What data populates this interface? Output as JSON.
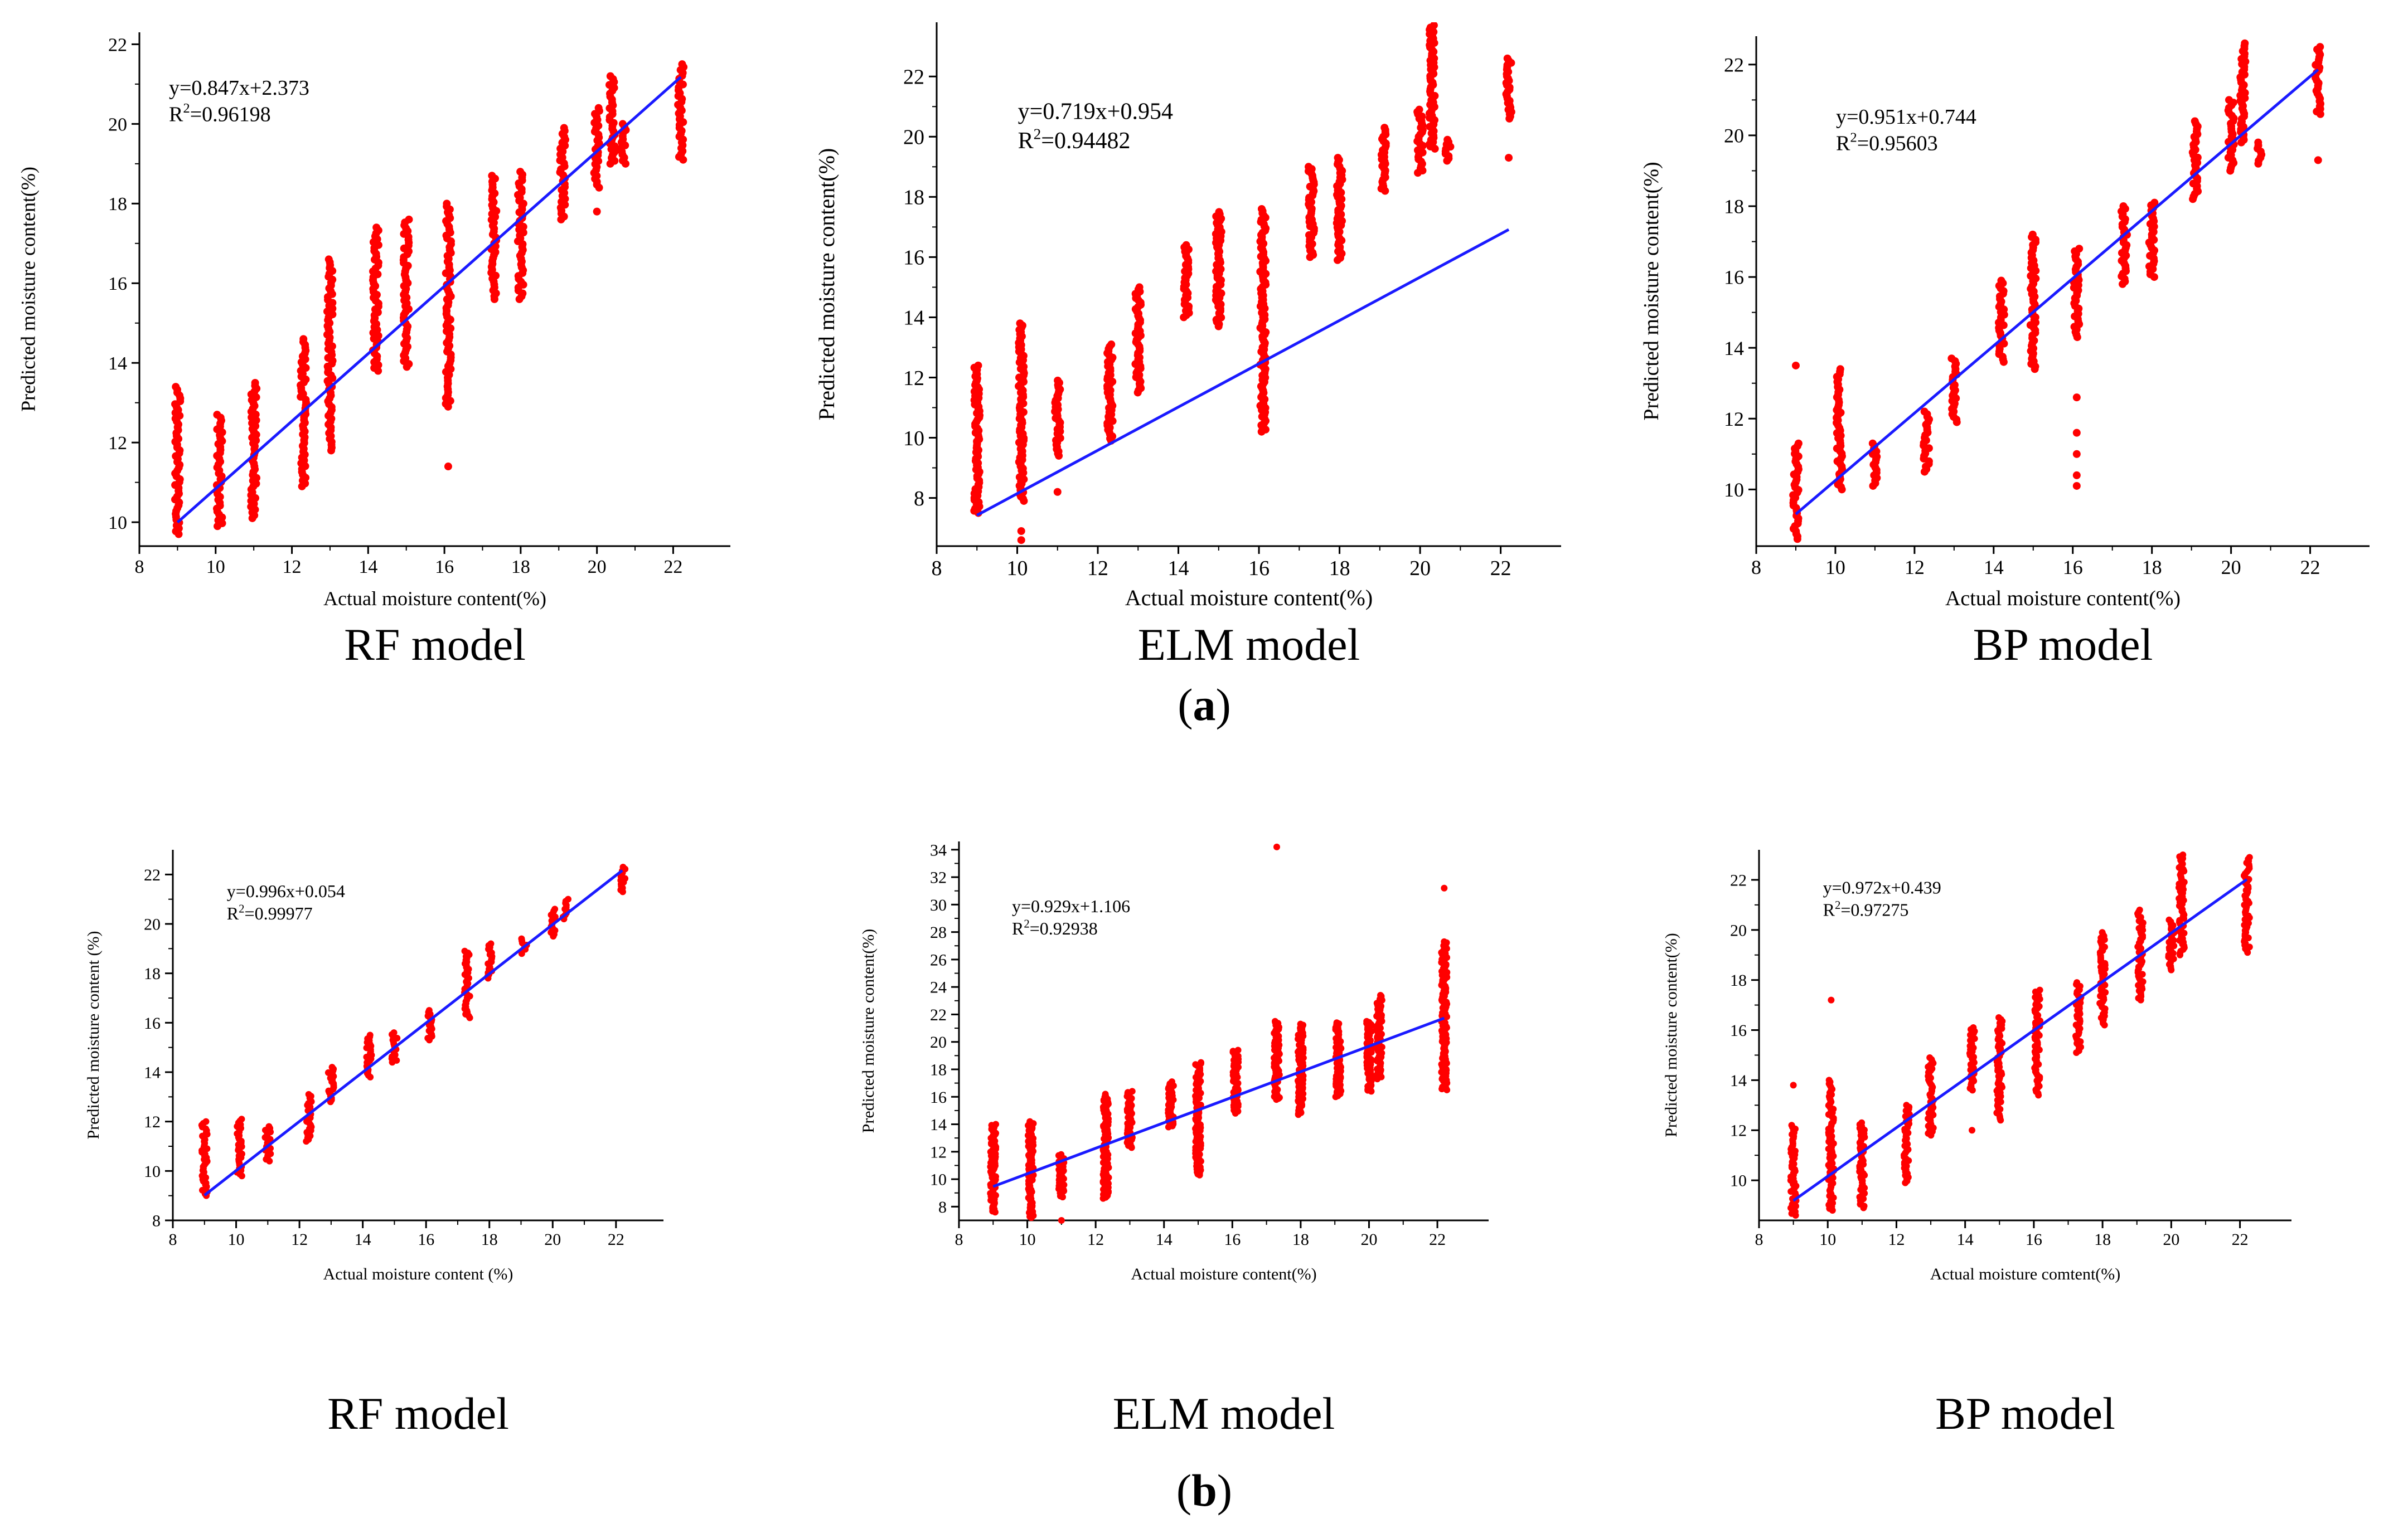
{
  "figure": {
    "row_a_label": {
      "open": "(",
      "letter": "a",
      "close": ")"
    },
    "row_b_label": {
      "open": "(",
      "letter": "b",
      "close": ")"
    }
  },
  "colors": {
    "points": "#ff0000",
    "fit_line": "#1a1aff",
    "axis": "#000000"
  },
  "chart_data": [
    {
      "type": "scatter",
      "row": "a",
      "model_label": "RF model",
      "xlabel": "Actual moisture content(%)",
      "ylabel": "Predicted moisture content(%)",
      "xlim": [
        8,
        23.5
      ],
      "ylim": [
        9.4,
        22.3
      ],
      "xticks": [
        "8",
        "10",
        "12",
        "14",
        "16",
        "18",
        "20",
        "22"
      ],
      "yticks": [
        "10",
        "12",
        "14",
        "16",
        "18",
        "20",
        "22"
      ],
      "equation": "y=0.847x+2.373",
      "r2_label": "R",
      "r2_sup": "2",
      "r2_value": "=0.96198",
      "fit": {
        "slope": 0.847,
        "intercept": 2.373,
        "x_range": [
          9.0,
          22.2
        ]
      },
      "columns": [
        {
          "x": 9.0,
          "y_min": 9.7,
          "y_max": 13.4
        },
        {
          "x": 10.1,
          "y_min": 9.9,
          "y_max": 12.7
        },
        {
          "x": 11.0,
          "y_min": 10.1,
          "y_max": 13.5
        },
        {
          "x": 12.3,
          "y_min": 10.9,
          "y_max": 14.6
        },
        {
          "x": 13.0,
          "y_min": 11.8,
          "y_max": 16.6
        },
        {
          "x": 14.2,
          "y_min": 13.8,
          "y_max": 17.4
        },
        {
          "x": 15.0,
          "y_min": 13.9,
          "y_max": 17.6
        },
        {
          "x": 16.1,
          "y_min": 12.9,
          "y_max": 18.0
        },
        {
          "x": 17.3,
          "y_min": 15.6,
          "y_max": 18.7
        },
        {
          "x": 18.0,
          "y_min": 15.6,
          "y_max": 18.8
        },
        {
          "x": 19.1,
          "y_min": 17.6,
          "y_max": 19.9
        },
        {
          "x": 20.0,
          "y_min": 18.4,
          "y_max": 20.4
        },
        {
          "x": 20.4,
          "y_min": 19.0,
          "y_max": 21.2
        },
        {
          "x": 20.7,
          "y_min": 19.0,
          "y_max": 20.0
        },
        {
          "x": 22.2,
          "y_min": 19.1,
          "y_max": 21.5
        }
      ],
      "outliers": [
        {
          "x": 16.1,
          "y": 11.4
        },
        {
          "x": 20.0,
          "y": 17.8
        }
      ]
    },
    {
      "type": "scatter",
      "row": "a",
      "model_label": "ELM model",
      "xlabel": "Actual moisture content(%)",
      "ylabel": "Predicted moisture content(%)",
      "xlim": [
        8,
        23.5
      ],
      "ylim": [
        6.4,
        23.8
      ],
      "xticks": [
        "8",
        "10",
        "12",
        "14",
        "16",
        "18",
        "20",
        "22"
      ],
      "yticks": [
        "8",
        "10",
        "12",
        "14",
        "16",
        "18",
        "20",
        "22"
      ],
      "equation": "y=0.719x+0.954",
      "r2_label": "R",
      "r2_sup": "2",
      "r2_value": "=0.94482",
      "fit": {
        "slope": 0.719,
        "intercept": 0.954,
        "x_range": [
          9.0,
          22.2
        ]
      },
      "columns": [
        {
          "x": 9.0,
          "y_min": 7.5,
          "y_max": 12.4
        },
        {
          "x": 10.1,
          "y_min": 7.9,
          "y_max": 13.8
        },
        {
          "x": 11.0,
          "y_min": 9.4,
          "y_max": 11.9
        },
        {
          "x": 12.3,
          "y_min": 9.9,
          "y_max": 13.1
        },
        {
          "x": 13.0,
          "y_min": 11.5,
          "y_max": 15.0
        },
        {
          "x": 14.2,
          "y_min": 14.0,
          "y_max": 16.4
        },
        {
          "x": 15.0,
          "y_min": 13.7,
          "y_max": 17.5
        },
        {
          "x": 16.1,
          "y_min": 10.2,
          "y_max": 17.6
        },
        {
          "x": 17.3,
          "y_min": 16.0,
          "y_max": 19.0
        },
        {
          "x": 18.0,
          "y_min": 15.9,
          "y_max": 19.3
        },
        {
          "x": 19.1,
          "y_min": 18.2,
          "y_max": 20.3
        },
        {
          "x": 20.0,
          "y_min": 18.8,
          "y_max": 20.9
        },
        {
          "x": 20.3,
          "y_min": 19.6,
          "y_max": 23.7
        },
        {
          "x": 20.7,
          "y_min": 19.2,
          "y_max": 19.9
        },
        {
          "x": 22.2,
          "y_min": 20.6,
          "y_max": 22.6
        }
      ],
      "outliers": [
        {
          "x": 10.1,
          "y": 6.6
        },
        {
          "x": 10.1,
          "y": 6.9
        },
        {
          "x": 11.0,
          "y": 8.2
        },
        {
          "x": 22.2,
          "y": 19.3
        }
      ]
    },
    {
      "type": "scatter",
      "row": "a",
      "model_label": "BP model",
      "xlabel": "Actual moisture content(%)",
      "ylabel": "Predicted moisture content(%)",
      "xlim": [
        8,
        23.5
      ],
      "ylim": [
        8.4,
        22.8
      ],
      "xticks": [
        "8",
        "10",
        "12",
        "14",
        "16",
        "18",
        "20",
        "22"
      ],
      "yticks": [
        "10",
        "12",
        "14",
        "16",
        "18",
        "20",
        "22"
      ],
      "equation": "y=0.951x+0.744",
      "r2_label": "R",
      "r2_sup": "2",
      "r2_value": "=0.95603",
      "fit": {
        "slope": 0.951,
        "intercept": 0.744,
        "x_range": [
          9.0,
          22.2
        ]
      },
      "columns": [
        {
          "x": 9.0,
          "y_min": 8.6,
          "y_max": 11.3
        },
        {
          "x": 10.1,
          "y_min": 10.0,
          "y_max": 13.4
        },
        {
          "x": 11.0,
          "y_min": 10.1,
          "y_max": 11.3
        },
        {
          "x": 12.3,
          "y_min": 10.5,
          "y_max": 12.2
        },
        {
          "x": 13.0,
          "y_min": 11.9,
          "y_max": 13.7
        },
        {
          "x": 14.2,
          "y_min": 13.6,
          "y_max": 15.9
        },
        {
          "x": 15.0,
          "y_min": 13.4,
          "y_max": 17.2
        },
        {
          "x": 16.1,
          "y_min": 14.3,
          "y_max": 16.8
        },
        {
          "x": 17.3,
          "y_min": 15.8,
          "y_max": 18.0
        },
        {
          "x": 18.0,
          "y_min": 16.0,
          "y_max": 18.1
        },
        {
          "x": 19.1,
          "y_min": 18.2,
          "y_max": 20.4
        },
        {
          "x": 20.0,
          "y_min": 19.0,
          "y_max": 21.0
        },
        {
          "x": 20.3,
          "y_min": 19.8,
          "y_max": 22.6
        },
        {
          "x": 20.7,
          "y_min": 19.2,
          "y_max": 19.8
        },
        {
          "x": 22.2,
          "y_min": 20.6,
          "y_max": 22.5
        }
      ],
      "outliers": [
        {
          "x": 9.0,
          "y": 13.5
        },
        {
          "x": 16.1,
          "y": 10.1
        },
        {
          "x": 16.1,
          "y": 10.4
        },
        {
          "x": 16.1,
          "y": 11.0
        },
        {
          "x": 16.1,
          "y": 11.6
        },
        {
          "x": 16.1,
          "y": 12.6
        },
        {
          "x": 22.2,
          "y": 19.3
        }
      ]
    },
    {
      "type": "scatter",
      "row": "b",
      "model_label": "RF model",
      "xlabel": "Actual moisture content (%)",
      "ylabel": "Predicted moisture content (%)",
      "xlim": [
        8,
        23.5
      ],
      "ylim": [
        8.0,
        23.0
      ],
      "xticks": [
        "8",
        "10",
        "12",
        "14",
        "16",
        "18",
        "20",
        "22"
      ],
      "yticks": [
        "8",
        "10",
        "12",
        "14",
        "16",
        "18",
        "20",
        "22"
      ],
      "equation": "y=0.996x+0.054",
      "r2_label": "R",
      "r2_sup": "2",
      "r2_value": "=0.99977",
      "fit": {
        "slope": 0.996,
        "intercept": 0.054,
        "x_range": [
          9.0,
          22.2
        ]
      },
      "columns": [
        {
          "x": 9.0,
          "y_min": 9.0,
          "y_max": 12.0
        },
        {
          "x": 10.1,
          "y_min": 9.8,
          "y_max": 12.1
        },
        {
          "x": 11.0,
          "y_min": 10.4,
          "y_max": 11.8
        },
        {
          "x": 12.3,
          "y_min": 11.2,
          "y_max": 13.1
        },
        {
          "x": 13.0,
          "y_min": 12.8,
          "y_max": 14.2
        },
        {
          "x": 14.2,
          "y_min": 13.8,
          "y_max": 15.5
        },
        {
          "x": 15.0,
          "y_min": 14.4,
          "y_max": 15.6
        },
        {
          "x": 16.1,
          "y_min": 15.3,
          "y_max": 16.5
        },
        {
          "x": 17.3,
          "y_min": 16.2,
          "y_max": 18.9
        },
        {
          "x": 18.0,
          "y_min": 17.8,
          "y_max": 19.2
        },
        {
          "x": 19.1,
          "y_min": 18.8,
          "y_max": 19.4
        },
        {
          "x": 20.0,
          "y_min": 19.5,
          "y_max": 20.6
        },
        {
          "x": 20.4,
          "y_min": 20.2,
          "y_max": 21.0
        },
        {
          "x": 22.2,
          "y_min": 21.3,
          "y_max": 22.3
        }
      ],
      "outliers": []
    },
    {
      "type": "scatter",
      "row": "b",
      "model_label": "ELM model",
      "xlabel": "Actual moisture content(%)",
      "ylabel": "Predicted moisture content(%)",
      "xlim": [
        8,
        23.5
      ],
      "ylim": [
        7.0,
        34.6
      ],
      "xticks": [
        "8",
        "10",
        "12",
        "14",
        "16",
        "18",
        "20",
        "22"
      ],
      "yticks": [
        "8",
        "10",
        "12",
        "14",
        "16",
        "18",
        "20",
        "22",
        "24",
        "26",
        "28",
        "30",
        "32",
        "34"
      ],
      "equation": "y=0.929x+1.106",
      "r2_label": "R",
      "r2_sup": "2",
      "r2_value": "=0.92938",
      "fit": {
        "slope": 0.929,
        "intercept": 1.106,
        "x_range": [
          9.0,
          22.2
        ]
      },
      "columns": [
        {
          "x": 9.0,
          "y_min": 7.6,
          "y_max": 14.0
        },
        {
          "x": 10.1,
          "y_min": 7.2,
          "y_max": 14.2
        },
        {
          "x": 11.0,
          "y_min": 8.7,
          "y_max": 11.8
        },
        {
          "x": 12.3,
          "y_min": 8.6,
          "y_max": 16.2
        },
        {
          "x": 13.0,
          "y_min": 12.3,
          "y_max": 16.4
        },
        {
          "x": 14.2,
          "y_min": 13.8,
          "y_max": 17.1
        },
        {
          "x": 15.0,
          "y_min": 10.3,
          "y_max": 18.5
        },
        {
          "x": 16.1,
          "y_min": 14.8,
          "y_max": 19.4
        },
        {
          "x": 17.3,
          "y_min": 15.8,
          "y_max": 21.5
        },
        {
          "x": 18.0,
          "y_min": 14.7,
          "y_max": 21.3
        },
        {
          "x": 19.1,
          "y_min": 16.0,
          "y_max": 21.4
        },
        {
          "x": 20.0,
          "y_min": 16.4,
          "y_max": 21.5
        },
        {
          "x": 20.3,
          "y_min": 17.3,
          "y_max": 23.4
        },
        {
          "x": 22.2,
          "y_min": 16.5,
          "y_max": 27.3
        }
      ],
      "outliers": [
        {
          "x": 17.3,
          "y": 34.2
        },
        {
          "x": 22.2,
          "y": 31.2
        },
        {
          "x": 11.0,
          "y": 7.0
        }
      ]
    },
    {
      "type": "scatter",
      "row": "b",
      "model_label": "BP model",
      "xlabel": "Actual moisture comtent(%)",
      "ylabel": "Predicted moisture content(%)",
      "xlim": [
        8,
        23.5
      ],
      "ylim": [
        8.4,
        23.2
      ],
      "xticks": [
        "8",
        "10",
        "12",
        "14",
        "16",
        "18",
        "20",
        "22"
      ],
      "yticks": [
        "10",
        "12",
        "14",
        "16",
        "18",
        "20",
        "22"
      ],
      "equation": "y=0.972x+0.439",
      "r2_label": "R",
      "r2_sup": "2",
      "r2_value": "=0.97275",
      "fit": {
        "slope": 0.972,
        "intercept": 0.439,
        "x_range": [
          9.0,
          22.2
        ]
      },
      "columns": [
        {
          "x": 9.0,
          "y_min": 8.6,
          "y_max": 12.2
        },
        {
          "x": 10.1,
          "y_min": 8.8,
          "y_max": 14.0
        },
        {
          "x": 11.0,
          "y_min": 8.9,
          "y_max": 12.3
        },
        {
          "x": 12.3,
          "y_min": 9.9,
          "y_max": 13.0
        },
        {
          "x": 13.0,
          "y_min": 11.8,
          "y_max": 14.9
        },
        {
          "x": 14.2,
          "y_min": 13.6,
          "y_max": 16.1
        },
        {
          "x": 15.0,
          "y_min": 12.4,
          "y_max": 16.5
        },
        {
          "x": 16.1,
          "y_min": 13.4,
          "y_max": 17.6
        },
        {
          "x": 17.3,
          "y_min": 15.1,
          "y_max": 17.9
        },
        {
          "x": 18.0,
          "y_min": 16.2,
          "y_max": 19.9
        },
        {
          "x": 19.1,
          "y_min": 17.2,
          "y_max": 20.8
        },
        {
          "x": 20.0,
          "y_min": 18.4,
          "y_max": 20.4
        },
        {
          "x": 20.3,
          "y_min": 19.0,
          "y_max": 23.0
        },
        {
          "x": 22.2,
          "y_min": 19.1,
          "y_max": 22.9
        }
      ],
      "outliers": [
        {
          "x": 9.0,
          "y": 13.8
        },
        {
          "x": 10.1,
          "y": 17.2
        },
        {
          "x": 14.2,
          "y": 12.0
        }
      ]
    }
  ]
}
